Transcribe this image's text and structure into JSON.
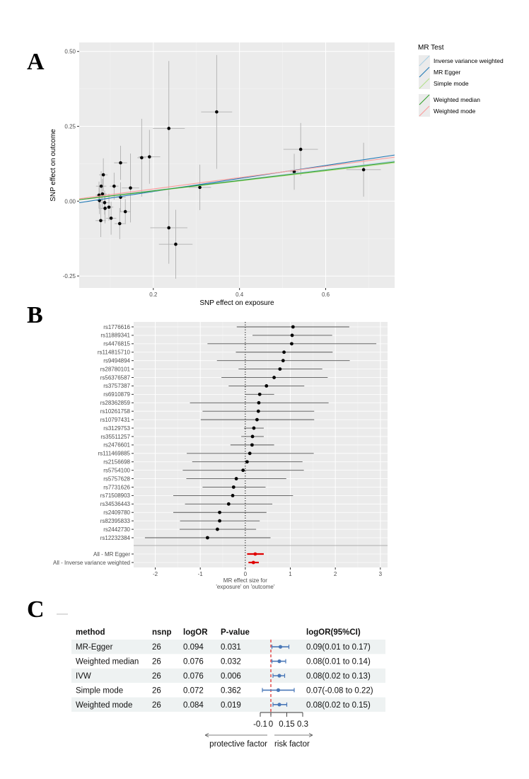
{
  "panels": {
    "a": "A",
    "b": "B",
    "c": "C"
  },
  "colors": {
    "panel_bg": "#ebebeb",
    "grid": "#ffffff",
    "point": "#000000",
    "errorbar_a": "#b0b0b0",
    "errorbar_b": "#555555",
    "summary": "#e00000",
    "table_stripe": "#eef2f2",
    "forest_c": "#4a78b8",
    "ref_line_c": "#e03030"
  },
  "chart_data": [
    {
      "type": "scatter",
      "title": "",
      "xlabel": "SNP effect on exposure",
      "ylabel": "SNP effect on outcome",
      "xlim": [
        0.028,
        0.76
      ],
      "ylim": [
        -0.29,
        0.53
      ],
      "xticks": [
        "0.2",
        "0.4",
        "0.6"
      ],
      "yticks": [
        "-0.25",
        "0.00",
        "0.25",
        "0.50"
      ],
      "grid": true,
      "legend": {
        "title": "MR Test",
        "placement": "right",
        "entries": [
          {
            "name": "Inverse variance weighted",
            "color": "#a6cee3"
          },
          {
            "name": "MR Egger",
            "color": "#1f78b4"
          },
          {
            "name": "Simple mode",
            "color": "#b2df8a"
          },
          {
            "name": "Weighted median",
            "color": "#33a02c"
          },
          {
            "name": "Weighted mode",
            "color": "#fb9a99"
          }
        ]
      },
      "lines": [
        {
          "name": "Inverse variance weighted",
          "intercept": 0,
          "slope": 0.176
        },
        {
          "name": "MR Egger",
          "intercept": -0.0113,
          "slope": 0.2175
        },
        {
          "name": "Simple mode",
          "intercept": 0,
          "slope": 0.168
        },
        {
          "name": "Weighted median",
          "intercept": 0,
          "slope": 0.172
        },
        {
          "name": "Weighted mode",
          "intercept": 0.0025,
          "slope": 0.19
        }
      ],
      "points": [
        {
          "x": 0.074,
          "y": 0.02,
          "xse": 0.008,
          "yse": 0.045
        },
        {
          "x": 0.075,
          "y": 0.002,
          "xse": 0.008,
          "yse": 0.045
        },
        {
          "x": 0.079,
          "y": 0.05,
          "xse": 0.012,
          "yse": 0.05
        },
        {
          "x": 0.078,
          "y": -0.065,
          "xse": 0.012,
          "yse": 0.055
        },
        {
          "x": 0.082,
          "y": 0.024,
          "xse": 0.01,
          "yse": 0.05
        },
        {
          "x": 0.084,
          "y": 0.088,
          "xse": 0.01,
          "yse": 0.055
        },
        {
          "x": 0.087,
          "y": -0.005,
          "xse": 0.012,
          "yse": 0.04
        },
        {
          "x": 0.088,
          "y": -0.024,
          "xse": 0.012,
          "yse": 0.05
        },
        {
          "x": 0.097,
          "y": -0.02,
          "xse": 0.01,
          "yse": 0.045
        },
        {
          "x": 0.102,
          "y": -0.057,
          "xse": 0.012,
          "yse": 0.055
        },
        {
          "x": 0.109,
          "y": 0.05,
          "xse": 0.01,
          "yse": 0.045
        },
        {
          "x": 0.122,
          "y": -0.075,
          "xse": 0.012,
          "yse": 0.052
        },
        {
          "x": 0.124,
          "y": 0.128,
          "xse": 0.015,
          "yse": 0.057
        },
        {
          "x": 0.124,
          "y": 0.013,
          "xse": 0.012,
          "yse": 0.05
        },
        {
          "x": 0.135,
          "y": -0.035,
          "xse": 0.012,
          "yse": 0.042
        },
        {
          "x": 0.147,
          "y": 0.044,
          "xse": 0.02,
          "yse": 0.115
        },
        {
          "x": 0.173,
          "y": 0.145,
          "xse": 0.01,
          "yse": 0.13
        },
        {
          "x": 0.191,
          "y": 0.148,
          "xse": 0.025,
          "yse": 0.09
        },
        {
          "x": 0.236,
          "y": 0.243,
          "xse": 0.037,
          "yse": 0.225
        },
        {
          "x": 0.236,
          "y": -0.089,
          "xse": 0.043,
          "yse": 0.12
        },
        {
          "x": 0.252,
          "y": -0.144,
          "xse": 0.039,
          "yse": 0.115
        },
        {
          "x": 0.308,
          "y": 0.046,
          "xse": 0.026,
          "yse": 0.076
        },
        {
          "x": 0.347,
          "y": 0.298,
          "xse": 0.036,
          "yse": 0.19
        },
        {
          "x": 0.527,
          "y": 0.098,
          "xse": 0.01,
          "yse": 0.06
        },
        {
          "x": 0.542,
          "y": 0.173,
          "xse": 0.04,
          "yse": 0.088
        },
        {
          "x": 0.688,
          "y": 0.105,
          "xse": 0.04,
          "yse": 0.09
        }
      ]
    },
    {
      "type": "forest",
      "title": "",
      "xlabel_lines": [
        "MR effect size for",
        "'exposure' on 'outcome'"
      ],
      "xlim": [
        -2.48,
        3.16
      ],
      "xticks": [
        -2,
        -1,
        0,
        1,
        2,
        3
      ],
      "grid": true,
      "reference_line": 0,
      "rows": [
        {
          "label": "rs1776616",
          "b": 1.06,
          "lo": -0.19,
          "hi": 2.31
        },
        {
          "label": "rs11889341",
          "b": 1.04,
          "lo": 0.16,
          "hi": 1.93
        },
        {
          "label": "rs4476815",
          "b": 1.03,
          "lo": -0.84,
          "hi": 2.91
        },
        {
          "label": "rs114815710",
          "b": 0.86,
          "lo": -0.21,
          "hi": 1.94
        },
        {
          "label": "rs9494894",
          "b": 0.84,
          "lo": -0.63,
          "hi": 2.32
        },
        {
          "label": "rs28780101",
          "b": 0.77,
          "lo": -0.15,
          "hi": 1.71
        },
        {
          "label": "rs56376587",
          "b": 0.64,
          "lo": -0.53,
          "hi": 1.83
        },
        {
          "label": "rs3757387",
          "b": 0.47,
          "lo": -0.37,
          "hi": 1.31
        },
        {
          "label": "rs6910879",
          "b": 0.32,
          "lo": 0.0,
          "hi": 0.64
        },
        {
          "label": "rs28362859",
          "b": 0.3,
          "lo": -1.23,
          "hi": 1.85
        },
        {
          "label": "rs10261758",
          "b": 0.29,
          "lo": -0.95,
          "hi": 1.53
        },
        {
          "label": "rs10797431",
          "b": 0.26,
          "lo": -0.99,
          "hi": 1.53
        },
        {
          "label": "rs3129753",
          "b": 0.19,
          "lo": -0.03,
          "hi": 0.41
        },
        {
          "label": "rs35511257",
          "b": 0.16,
          "lo": -0.09,
          "hi": 0.41
        },
        {
          "label": "rs2476601",
          "b": 0.15,
          "lo": -0.33,
          "hi": 0.64
        },
        {
          "label": "rs111469885",
          "b": 0.1,
          "lo": -1.3,
          "hi": 1.52
        },
        {
          "label": "rs2156698",
          "b": 0.04,
          "lo": -1.18,
          "hi": 1.27
        },
        {
          "label": "rs5754100",
          "b": -0.05,
          "lo": -1.39,
          "hi": 1.3
        },
        {
          "label": "rs5757628",
          "b": -0.2,
          "lo": -1.31,
          "hi": 0.91
        },
        {
          "label": "rs7731626",
          "b": -0.26,
          "lo": -0.95,
          "hi": 0.45
        },
        {
          "label": "rs71508903",
          "b": -0.28,
          "lo": -1.6,
          "hi": 1.06
        },
        {
          "label": "rs34536443",
          "b": -0.37,
          "lo": -1.34,
          "hi": 0.6
        },
        {
          "label": "rs2409780",
          "b": -0.57,
          "lo": -1.6,
          "hi": 0.47
        },
        {
          "label": "rs82395833",
          "b": -0.57,
          "lo": -1.45,
          "hi": 0.32
        },
        {
          "label": "rs2442730",
          "b": -0.62,
          "lo": -1.46,
          "hi": 0.24
        },
        {
          "label": "rs12232384",
          "b": -0.84,
          "lo": -2.23,
          "hi": 0.56
        }
      ],
      "summary": [
        {
          "label": "All - MR Egger",
          "b": 0.22,
          "lo": 0.04,
          "hi": 0.41
        },
        {
          "label": "All - Inverse variance weighted",
          "b": 0.18,
          "lo": 0.07,
          "hi": 0.3
        }
      ]
    },
    {
      "type": "table",
      "columns": [
        "method",
        "nsnp",
        "logOR",
        "P-value",
        "",
        "logOR(95%CI)"
      ],
      "rows": [
        {
          "method": "MR-Egger",
          "nsnp": "26",
          "logOR": "0.094",
          "p": "0.031",
          "ci": "0.09(0.01 to 0.17)",
          "b": 0.09,
          "lo": 0.01,
          "hi": 0.17
        },
        {
          "method": "Weighted median",
          "nsnp": "26",
          "logOR": "0.076",
          "p": "0.032",
          "ci": "0.08(0.01 to 0.14)",
          "b": 0.08,
          "lo": 0.01,
          "hi": 0.14
        },
        {
          "method": "IVW",
          "nsnp": "26",
          "logOR": "0.076",
          "p": "0.006",
          "ci": "0.08(0.02 to 0.13)",
          "b": 0.08,
          "lo": 0.02,
          "hi": 0.13
        },
        {
          "method": "Simple mode",
          "nsnp": "26",
          "logOR": "0.072",
          "p": "0.362",
          "ci": "0.07(-0.08 to 0.22)",
          "b": 0.07,
          "lo": -0.08,
          "hi": 0.22
        },
        {
          "method": "Weighted mode",
          "nsnp": "26",
          "logOR": "0.084",
          "p": "0.019",
          "ci": "0.08(0.02 to 0.15)",
          "b": 0.08,
          "lo": 0.02,
          "hi": 0.15
        }
      ],
      "xticks": [
        "-0.1",
        "0",
        "0.15",
        "0.3"
      ],
      "xtick_values": [
        -0.1,
        0,
        0.15,
        0.3
      ],
      "reference_line": 0,
      "arrow_left": "protective factor",
      "arrow_right": "risk factor"
    }
  ]
}
